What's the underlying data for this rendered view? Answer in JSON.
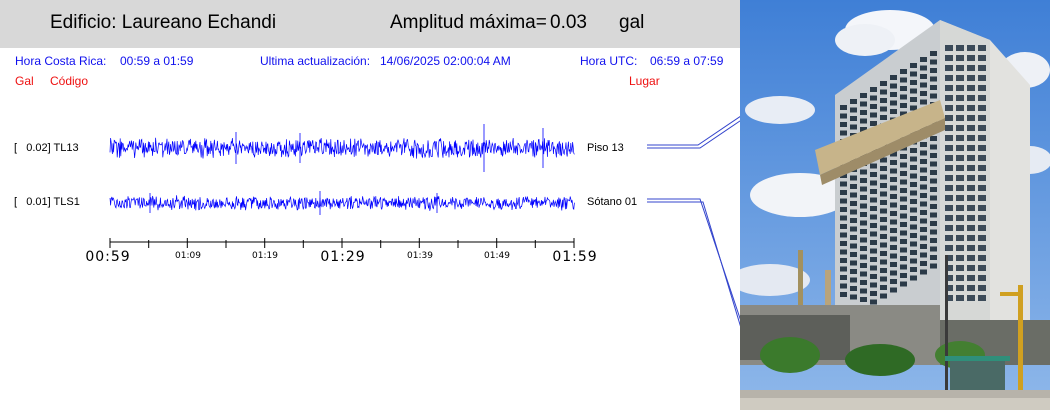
{
  "header": {
    "building": "Edificio: Laureano Echandi",
    "amp_label": "Amplitud máxima=",
    "amp_value": "0.03",
    "amp_unit": "gal"
  },
  "info": {
    "cr_label": "Hora Costa Rica:",
    "cr_range": "00:59 a 01:59",
    "update_label": "Ultima actualización:",
    "update_value": "14/06/2025 02:00:04 AM",
    "utc_label": "Hora UTC:",
    "utc_range": "06:59 a 07:59"
  },
  "columns": {
    "gal": "Gal",
    "code": "Código",
    "place": "Lugar"
  },
  "channels": [
    {
      "value": "[   0.02] TL13",
      "place": "Piso 13"
    },
    {
      "value": "[   0.01] TLS1",
      "place": "Sótano 01"
    }
  ],
  "axis": {
    "ticks": [
      "00:59",
      "01:09",
      "01:19",
      "01:29",
      "01:39",
      "01:49",
      "01:59"
    ]
  },
  "colors": {
    "trace": "#0000ff",
    "header_bg": "#d8d8d8",
    "info": "#1010ee",
    "column": "#ee1010"
  }
}
